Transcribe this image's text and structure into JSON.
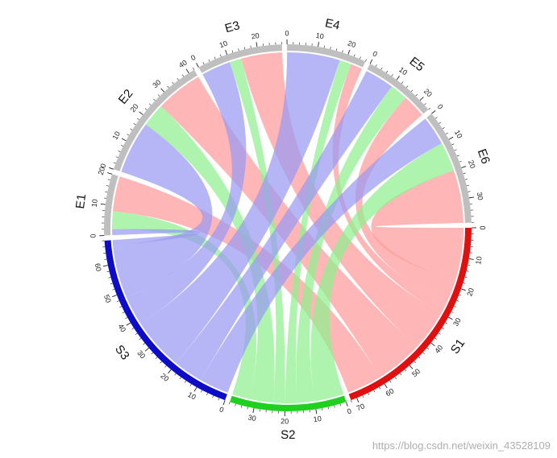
{
  "colors": {
    "S1": "#e01010",
    "S2": "#1fd01f",
    "S3": "#0d0dc8",
    "E": "#bfbfbf",
    "link_S1": "#ff9a9a",
    "link_S2": "#8ff08f",
    "link_S3": "#9a9af2",
    "background": "#ffffff"
  },
  "watermark": "https://blog.csdn.net/weixin_43528109",
  "chart_data": {
    "type": "chord",
    "sectors": [
      {
        "name": "S1",
        "size": 72,
        "ticks": [
          0,
          10,
          20,
          30,
          40,
          50,
          60,
          70
        ],
        "group": "source"
      },
      {
        "name": "S2",
        "size": 38,
        "ticks": [
          0,
          10,
          20,
          30
        ],
        "group": "source"
      },
      {
        "name": "S3",
        "size": 68,
        "ticks": [
          0,
          10,
          20,
          30,
          40,
          50,
          60
        ],
        "group": "source"
      },
      {
        "name": "E1",
        "size": 20,
        "ticks": [
          0,
          10,
          20
        ],
        "group": "target"
      },
      {
        "name": "E2",
        "size": 42,
        "ticks": [
          0,
          10,
          20,
          30,
          40
        ],
        "group": "target"
      },
      {
        "name": "E3",
        "size": 28,
        "ticks": [
          0,
          10,
          20
        ],
        "group": "target"
      },
      {
        "name": "E4",
        "size": 26,
        "ticks": [
          0,
          10,
          20
        ],
        "group": "target"
      },
      {
        "name": "E5",
        "size": 24,
        "ticks": [
          0,
          10,
          20
        ],
        "group": "target"
      },
      {
        "name": "E6",
        "size": 38,
        "ticks": [
          0,
          10,
          20,
          30
        ],
        "group": "target"
      }
    ],
    "links": [
      {
        "source": "S1",
        "target": "E6",
        "value": 18
      },
      {
        "source": "S1",
        "target": "E5",
        "value": 8
      },
      {
        "source": "S1",
        "target": "E4",
        "value": 4
      },
      {
        "source": "S1",
        "target": "E3",
        "value": 14
      },
      {
        "source": "S1",
        "target": "E2",
        "value": 16
      },
      {
        "source": "S1",
        "target": "E1",
        "value": 12
      },
      {
        "source": "S2",
        "target": "E6",
        "value": 10
      },
      {
        "source": "S2",
        "target": "E5",
        "value": 6
      },
      {
        "source": "S2",
        "target": "E4",
        "value": 4
      },
      {
        "source": "S2",
        "target": "E3",
        "value": 4
      },
      {
        "source": "S2",
        "target": "E2",
        "value": 8
      },
      {
        "source": "S2",
        "target": "E1",
        "value": 6
      },
      {
        "source": "S3",
        "target": "E6",
        "value": 10
      },
      {
        "source": "S3",
        "target": "E5",
        "value": 10
      },
      {
        "source": "S3",
        "target": "E4",
        "value": 18
      },
      {
        "source": "S3",
        "target": "E3",
        "value": 10
      },
      {
        "source": "S3",
        "target": "E2",
        "value": 18
      },
      {
        "source": "S3",
        "target": "E1",
        "value": 2
      }
    ]
  }
}
